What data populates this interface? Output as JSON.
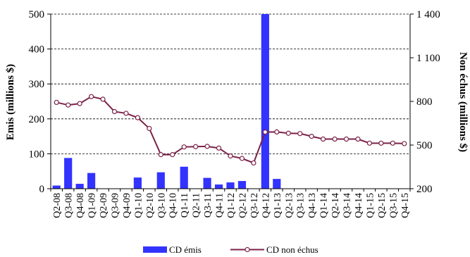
{
  "chart_data": {
    "type": "bar+line",
    "categories": [
      "Q2-08",
      "Q3-08",
      "Q4-08",
      "Q1-09",
      "Q2-09",
      "Q3-09",
      "Q4-09",
      "Q1-10",
      "Q2-10",
      "Q3-10",
      "Q4-10",
      "Q1-11",
      "Q2-11",
      "Q3-11",
      "Q4-11",
      "Q1-12",
      "Q2-12",
      "Q3-12",
      "Q4-12",
      "Q1-13",
      "Q2-13",
      "Q3-13",
      "Q4-13",
      "Q1-14",
      "Q2-14",
      "Q3-14",
      "Q4-14",
      "Q1-15",
      "Q2-15",
      "Q3-15",
      "Q4-15"
    ],
    "series": [
      {
        "name": "CD émis",
        "type": "bar",
        "axis": "left",
        "color": "#3333ff",
        "values": [
          9,
          88,
          14,
          45,
          0,
          0,
          0,
          32,
          0,
          47,
          0,
          63,
          0,
          31,
          12,
          18,
          22,
          0,
          500,
          28,
          0,
          0,
          0,
          0,
          0,
          0,
          0,
          0,
          0,
          0,
          0
        ]
      },
      {
        "name": "CD non échus",
        "type": "line",
        "axis": "right",
        "color": "#7b2248",
        "values": [
          793,
          775,
          785,
          833,
          815,
          730,
          718,
          688,
          614,
          434,
          434,
          487,
          489,
          491,
          479,
          425,
          408,
          377,
          589,
          590,
          581,
          579,
          560,
          541,
          541,
          541,
          541,
          513,
          513,
          513,
          510
        ]
      }
    ],
    "yleft": {
      "label": "Emis  (millions $)",
      "min": 0,
      "max": 500,
      "ticks": [
        "0",
        "100",
        "200",
        "300",
        "400",
        "500"
      ]
    },
    "yright": {
      "label": "Non échus (millions $)",
      "min": 200,
      "max": 1400,
      "ticks": [
        "200",
        "500",
        "800",
        "1 100",
        "1 400"
      ]
    },
    "grid": "horizontal-dashed",
    "legend": "bottom"
  }
}
